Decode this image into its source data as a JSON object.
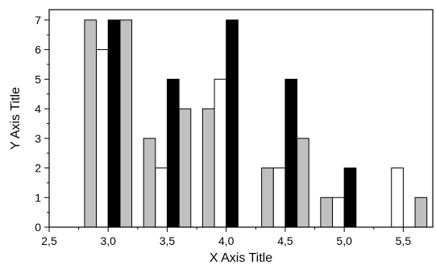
{
  "chart_data": {
    "type": "bar",
    "xlabel": "X Axis Title",
    "ylabel": "Y Axis Title",
    "xlim": [
      2.5,
      5.75
    ],
    "ylim": [
      0,
      7.35
    ],
    "x_ticks": [
      "2,5",
      "3,0",
      "3,5",
      "4,0",
      "4,5",
      "5,0",
      "5,5"
    ],
    "x_tick_values": [
      2.5,
      3.0,
      3.5,
      4.0,
      4.5,
      5.0,
      5.5
    ],
    "y_ticks": [
      "0",
      "1",
      "2",
      "3",
      "4",
      "5",
      "6",
      "7"
    ],
    "y_tick_values": [
      0,
      1,
      2,
      3,
      4,
      5,
      6,
      7
    ],
    "bar_width": 0.1,
    "grid": false,
    "legend": "none",
    "series": [
      {
        "fill": "#c0c0c0",
        "points": [
          {
            "x": 2.85,
            "y": 7
          },
          {
            "x": 3.15,
            "y": 7
          },
          {
            "x": 3.35,
            "y": 3
          },
          {
            "x": 3.65,
            "y": 4
          },
          {
            "x": 3.85,
            "y": 4
          },
          {
            "x": 4.35,
            "y": 2
          },
          {
            "x": 4.65,
            "y": 3
          },
          {
            "x": 4.85,
            "y": 1
          },
          {
            "x": 5.65,
            "y": 1
          }
        ]
      },
      {
        "fill": "#ffffff",
        "points": [
          {
            "x": 2.95,
            "y": 6
          },
          {
            "x": 3.45,
            "y": 2
          },
          {
            "x": 3.95,
            "y": 5
          },
          {
            "x": 4.45,
            "y": 2
          },
          {
            "x": 4.95,
            "y": 1
          },
          {
            "x": 5.45,
            "y": 2
          }
        ]
      },
      {
        "fill": "#000000",
        "points": [
          {
            "x": 3.05,
            "y": 7
          },
          {
            "x": 3.55,
            "y": 5
          },
          {
            "x": 4.05,
            "y": 7
          },
          {
            "x": 4.55,
            "y": 5
          },
          {
            "x": 5.05,
            "y": 2
          }
        ]
      }
    ]
  }
}
